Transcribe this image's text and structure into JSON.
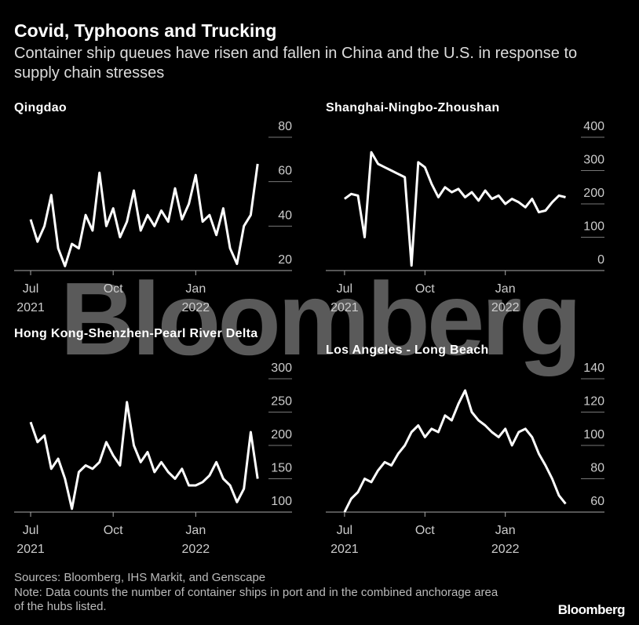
{
  "title": "Covid, Typhoons and Trucking",
  "subtitle": "Container ship queues have risen and fallen in China and the U.S. in response to supply chain stresses",
  "watermark": "Bloomberg",
  "source": "Sources: Bloomberg, IHS Markit, and Genscape",
  "note": "Note: Data counts the number of container ships in port and in the combined anchorage area of the hubs listed.",
  "logo": "Bloomberg",
  "chart_data": [
    {
      "type": "line",
      "title": "Qingdao",
      "color": "#ffffff",
      "x": [
        0,
        0.25,
        0.5,
        0.75,
        1,
        1.25,
        1.5,
        1.75,
        2,
        2.25,
        2.5,
        2.75,
        3,
        3.25,
        3.5,
        3.75,
        4,
        4.25,
        4.5,
        4.75,
        5,
        5.25,
        5.5,
        5.75,
        6,
        6.25,
        6.5,
        6.75,
        7,
        7.25,
        7.5,
        7.75,
        8,
        8.25
      ],
      "values": [
        43,
        33,
        40,
        54,
        30,
        22,
        32,
        30,
        45,
        38,
        64,
        40,
        48,
        35,
        42,
        56,
        38,
        45,
        40,
        47,
        42,
        57,
        43,
        50,
        63,
        42,
        45,
        36,
        48,
        30,
        23,
        40,
        45,
        68
      ],
      "xlim": [
        -0.6,
        9.5
      ],
      "xticks": [
        {
          "value": 0,
          "label": "Jul"
        },
        {
          "value": 3,
          "label": "Oct"
        },
        {
          "value": 6,
          "label": "Jan"
        }
      ],
      "xtick_years": [
        {
          "value": 0,
          "label": "2021"
        },
        {
          "value": 6,
          "label": "2022"
        }
      ],
      "ylim": [
        20,
        80
      ],
      "yticks": [
        20,
        40,
        60,
        80
      ]
    },
    {
      "type": "line",
      "title": "Shanghai-Ningbo-Zhoushan",
      "color": "#ffffff",
      "x": [
        0,
        0.25,
        0.5,
        0.75,
        1,
        1.25,
        1.5,
        1.75,
        2,
        2.25,
        2.5,
        2.75,
        3,
        3.25,
        3.5,
        3.75,
        4,
        4.25,
        4.5,
        4.75,
        5,
        5.25,
        5.5,
        5.75,
        6,
        6.25,
        6.5,
        6.75,
        7,
        7.25,
        7.5,
        7.75,
        8,
        8.25
      ],
      "values": [
        215,
        230,
        225,
        100,
        355,
        320,
        310,
        300,
        290,
        280,
        15,
        325,
        310,
        260,
        220,
        250,
        235,
        245,
        220,
        235,
        210,
        240,
        215,
        225,
        200,
        215,
        205,
        190,
        215,
        175,
        180,
        205,
        225,
        220
      ],
      "xlim": [
        -0.7,
        9.7
      ],
      "xticks": [
        {
          "value": 0,
          "label": "Jul"
        },
        {
          "value": 3,
          "label": "Oct"
        },
        {
          "value": 6,
          "label": "Jan"
        }
      ],
      "xtick_years": [
        {
          "value": 0,
          "label": "2021"
        },
        {
          "value": 6,
          "label": "2022"
        }
      ],
      "ylim": [
        0,
        400
      ],
      "yticks": [
        0,
        100,
        200,
        300,
        400
      ]
    },
    {
      "type": "line",
      "title": "Hong Kong-Shenzhen-Pearl River Delta",
      "color": "#ffffff",
      "x": [
        0,
        0.25,
        0.5,
        0.75,
        1,
        1.25,
        1.5,
        1.75,
        2,
        2.25,
        2.5,
        2.75,
        3,
        3.25,
        3.5,
        3.75,
        4,
        4.25,
        4.5,
        4.75,
        5,
        5.25,
        5.5,
        5.75,
        6,
        6.25,
        6.5,
        6.75,
        7,
        7.25,
        7.5,
        7.75,
        8,
        8.25
      ],
      "values": [
        235,
        205,
        215,
        165,
        180,
        150,
        105,
        160,
        170,
        165,
        175,
        205,
        185,
        170,
        265,
        200,
        175,
        190,
        160,
        175,
        160,
        150,
        165,
        140,
        140,
        145,
        155,
        175,
        150,
        140,
        115,
        135,
        220,
        150
      ],
      "xlim": [
        -0.6,
        9.5
      ],
      "xticks": [
        {
          "value": 0,
          "label": "Jul"
        },
        {
          "value": 3,
          "label": "Oct"
        },
        {
          "value": 6,
          "label": "Jan"
        }
      ],
      "xtick_years": [
        {
          "value": 0,
          "label": "2021"
        },
        {
          "value": 6,
          "label": "2022"
        }
      ],
      "ylim": [
        100,
        300
      ],
      "yticks": [
        100,
        150,
        200,
        250,
        300
      ]
    },
    {
      "type": "line",
      "title": "Los Angeles - Long Beach",
      "color": "#ffffff",
      "x": [
        0,
        0.25,
        0.5,
        0.75,
        1,
        1.25,
        1.5,
        1.75,
        2,
        2.25,
        2.5,
        2.75,
        3,
        3.25,
        3.5,
        3.75,
        4,
        4.25,
        4.5,
        4.75,
        5,
        5.25,
        5.5,
        5.75,
        6,
        6.25,
        6.5,
        6.75,
        7,
        7.25,
        7.5,
        7.75,
        8,
        8.25
      ],
      "values": [
        60,
        68,
        72,
        80,
        78,
        85,
        90,
        88,
        95,
        100,
        108,
        112,
        105,
        110,
        108,
        118,
        115,
        125,
        133,
        120,
        115,
        112,
        108,
        105,
        110,
        100,
        108,
        110,
        105,
        95,
        88,
        80,
        70,
        65
      ],
      "xlim": [
        -0.7,
        9.7
      ],
      "xticks": [
        {
          "value": 0,
          "label": "Jul"
        },
        {
          "value": 3,
          "label": "Oct"
        },
        {
          "value": 6,
          "label": "Jan"
        }
      ],
      "xtick_years": [
        {
          "value": 0,
          "label": "2021"
        },
        {
          "value": 6,
          "label": "2022"
        }
      ],
      "ylim": [
        60,
        140
      ],
      "yticks": [
        60,
        80,
        100,
        120,
        140
      ]
    }
  ]
}
